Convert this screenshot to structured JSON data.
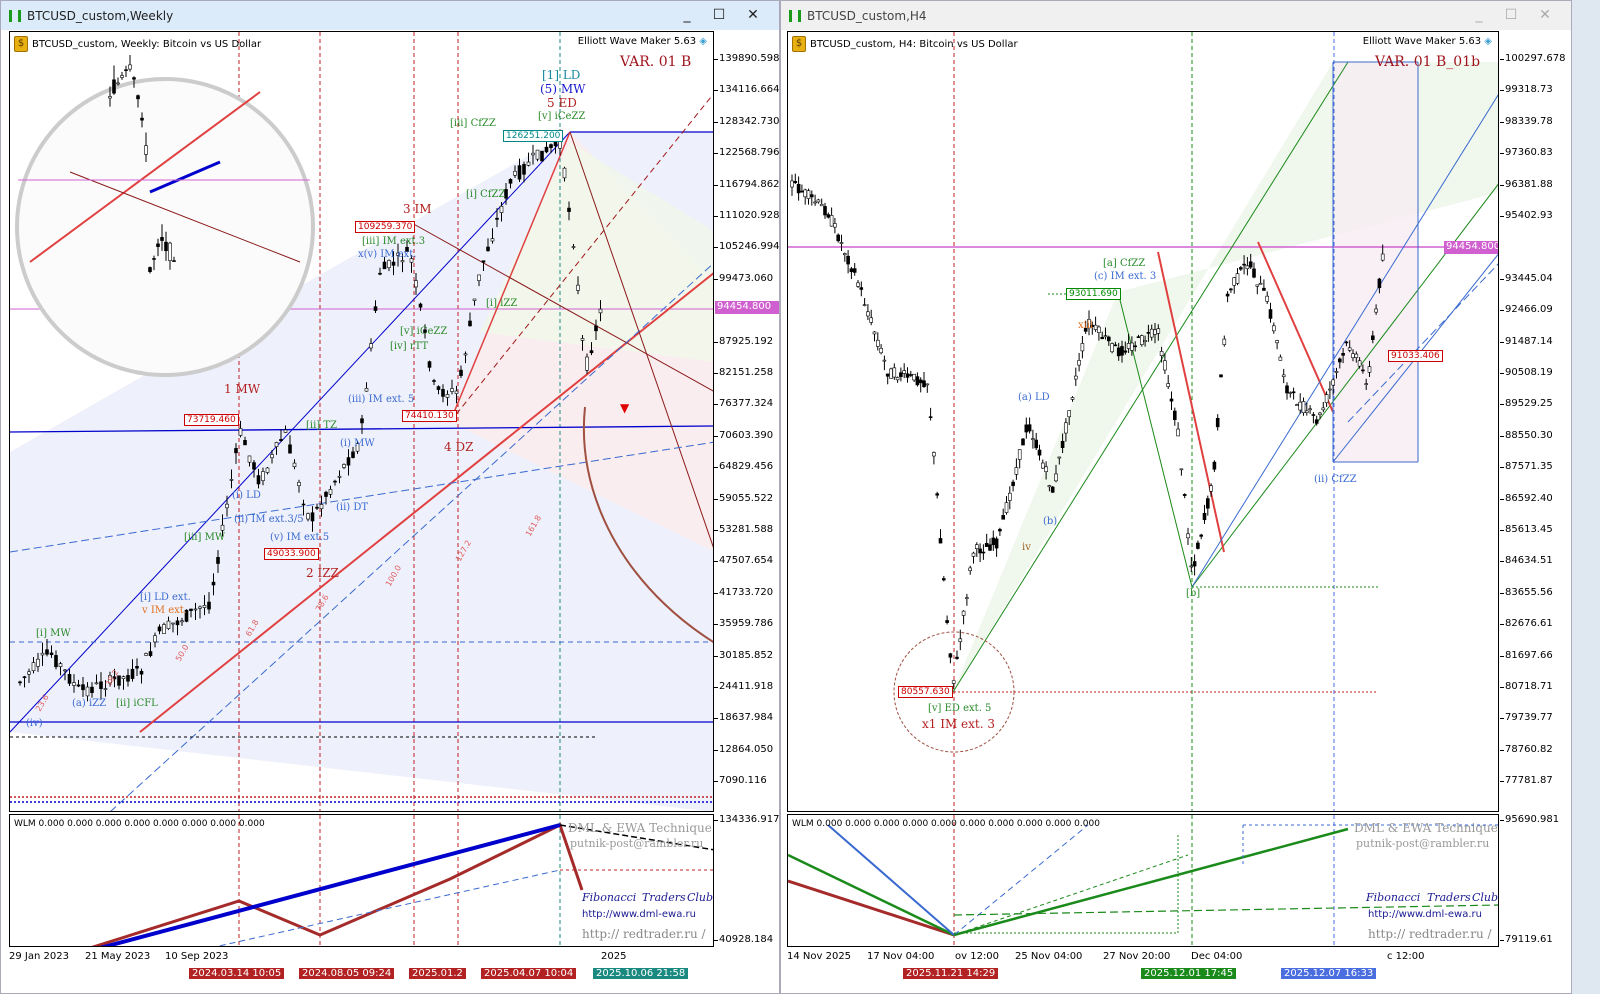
{
  "left": {
    "window_title": "BTCUSD_custom,Weekly",
    "header": "BTCUSD_custom, Weekly:  Bitcoin vs US Dollar",
    "plugin": "Elliott Wave Maker 5.63",
    "variant": "VAR. 01 B",
    "current_price": "94454.800",
    "price_axis": [
      "139890.598",
      "134116.664",
      "128342.730",
      "122568.796",
      "116794.862",
      "111020.928",
      "105246.994",
      "99473.060",
      "87925.192",
      "82151.258",
      "76377.324",
      "70603.390",
      "64829.456",
      "59055.522",
      "53281.588",
      "47507.654",
      "41733.720",
      "35959.786",
      "30185.852",
      "24411.918",
      "18637.984",
      "12864.050",
      "7090.116"
    ],
    "wave_labels": [
      "[1] LD",
      "(5) MW",
      "5 ED",
      "[v] iCeZZ",
      "[iii] CfZZ",
      "3 IM",
      "[iii] IM ext.3",
      "x(v) IM ext.",
      "1 MW",
      "4 DZ",
      "2 IZZ",
      "[i] CfZZ",
      "(iii) IM ext. 5",
      "(i) LD",
      "(ii) IM ext.3/5",
      "[iii] MW",
      "[i] LD ext.",
      "v IM ext.",
      "[i] MW",
      "(a) iZZ",
      "[ii] iCFL",
      "(iv)",
      "(b)",
      "(c)",
      "[ii] TZ",
      "(ii) DT",
      "(i) MW",
      "(v) IM ext.5",
      "[v] iCeZZ",
      "[iv] rTT",
      "[i] iZZ",
      "(a)",
      "(b)",
      "(c)"
    ],
    "price_boxes": {
      "top": "126251.200",
      "wave3": "109259.370",
      "wave1": "73719.460",
      "wave4": "74410.130",
      "wave2": "49033.900"
    },
    "indicator": {
      "label": "WLM 0.000 0.000 0.000 0.000 0.000 0.000 0.000 0.000",
      "axis_top": "134336.917",
      "axis_bottom": "40928.184"
    },
    "watermarks": [
      "DML & EWA Technique",
      "putnik-post@rambler.ru",
      "Fibonacci",
      "Traders",
      "Club",
      "http://www.dml-ewa.ru",
      "http:// redtrader.ru /"
    ],
    "dates": [
      "29 Jan 2023",
      "21 May 2023",
      "10 Sep 2023",
      "2025"
    ],
    "date_marks": [
      {
        "text": "2024.03.14 10:05",
        "color": "#b22222"
      },
      {
        "text": "2024.08.05 09:24",
        "color": "#b22222"
      },
      {
        "text": "2025.01.2",
        "color": "#b22222"
      },
      {
        "text": "2025.04.07 10:04",
        "color": "#b22222"
      },
      {
        "text": "2025.10.06 21:58",
        "color": "#1a8a80"
      }
    ],
    "fib_levels": [
      "23.6",
      "38.2",
      "50.0",
      "61.8",
      "78.6",
      "100.0",
      "127.2",
      "161.8"
    ]
  },
  "right": {
    "window_title": "BTCUSD_custom,H4",
    "header": "BTCUSD_custom, H4:  Bitcoin vs US Dollar",
    "plugin": "Elliott Wave Maker 5.63",
    "variant": "VAR. 01 B_01b",
    "current_price": "94454.800",
    "price_axis": [
      "100297.678",
      "99318.73",
      "98339.78",
      "97360.83",
      "96381.88",
      "95402.93",
      "93445.04",
      "92466.09",
      "91487.14",
      "90508.19",
      "89529.25",
      "88550.30",
      "87571.35",
      "86592.40",
      "85613.45",
      "84634.51",
      "83655.56",
      "82676.61",
      "81697.66",
      "80718.71",
      "79739.77",
      "78760.82",
      "77781.87"
    ],
    "wave_labels": [
      "[a] CfZZ",
      "(c) IM ext. 3",
      "[v] ED ext. 5",
      "x1 IM ext. 3",
      "(a) LD",
      "(b)",
      "[b]",
      "(ii) CfZZ",
      "xiii",
      "iv",
      "v",
      "iii",
      "ii",
      "i",
      "a",
      "c"
    ],
    "price_boxes": {
      "a_top": "93011.690",
      "low": "80557.630",
      "last": "91033.406"
    },
    "indicator": {
      "label": "WLM 0.000 0.000 0.000 0.000 0.000 0.000 0.000 0.000 0.000 0.000",
      "axis_top": "95690.981",
      "axis_bottom": "79119.61"
    },
    "watermarks": [
      "DML & EWA Technique",
      "putnik-post@rambler.ru",
      "Fibonacci",
      "Traders",
      "Club",
      "http://www.dml-ewa.ru",
      "http:// redtrader.ru /"
    ],
    "dates": [
      "14 Nov 2025",
      "17 Nov 04:00",
      "ov 12:00",
      "25 Nov 04:00",
      "27 Nov 20:00",
      "Dec 04:00",
      "c 12:00"
    ],
    "date_marks": [
      {
        "text": "2025.11.21 14:29",
        "color": "#b22222"
      },
      {
        "text": "2025.12.01 17:45",
        "color": "#1a8a1a"
      },
      {
        "text": "2025.12.07 16:33",
        "color": "#4a6ee0"
      }
    ]
  },
  "colors": {
    "bull_wave": "#0000cc",
    "bear_wave": "#a52a2a",
    "price_line": "#d060d0",
    "fib_red": "#e05050",
    "fib_green": "#2a8a2a"
  }
}
